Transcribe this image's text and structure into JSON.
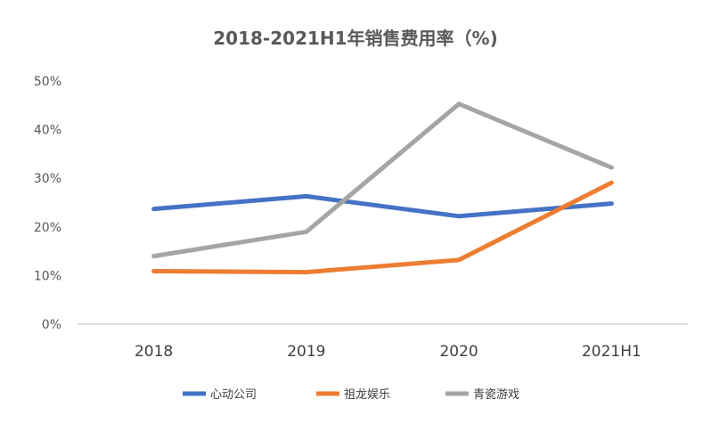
{
  "chart_data": {
    "type": "line",
    "title": "2018-2021H1年销售费用率（%)",
    "xlabel": "",
    "ylabel": "",
    "categories": [
      "2018",
      "2019",
      "2020",
      "2021H1"
    ],
    "y_ticks": [
      "0%",
      "10%",
      "20%",
      "30%",
      "40%",
      "50%"
    ],
    "ylim": [
      0,
      50
    ],
    "grid": false,
    "legend_position": "bottom",
    "series": [
      {
        "name": "心动公司",
        "values": [
          23.7,
          26.3,
          22.2,
          24.8
        ],
        "color": "#4472C4"
      },
      {
        "name": "祖龙娱乐",
        "values": [
          10.9,
          10.7,
          13.2,
          29.1
        ],
        "color": "#ED7D31"
      },
      {
        "name": "青瓷游戏",
        "values": [
          14.0,
          19.0,
          45.3,
          32.2
        ],
        "color": "#A5A5A5"
      }
    ],
    "axis_color": "#BFBFBF"
  }
}
